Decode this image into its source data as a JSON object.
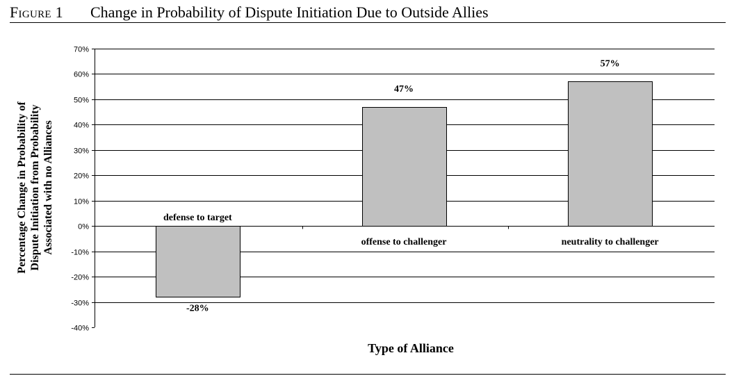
{
  "figure": {
    "label": "Figure 1",
    "title": "Change in Probability of Dispute Initiation Due to Outside Allies"
  },
  "chart_data": {
    "type": "bar",
    "categories": [
      "defense to target",
      "offense to challenger",
      "neutrality to challenger"
    ],
    "values": [
      -28,
      47,
      57
    ],
    "data_labels": [
      "-28%",
      "47%",
      "57%"
    ],
    "xlabel": "Type of Alliance",
    "ylabel_lines": [
      "Percentage Change in Probability of",
      "Dispute Initiation from Probability",
      "Associated with no Alliances"
    ],
    "ylim": [
      -40,
      70
    ],
    "yticks": [
      -40,
      -30,
      -20,
      -10,
      0,
      10,
      20,
      30,
      40,
      50,
      60,
      70
    ],
    "ytick_labels": [
      "-40%",
      "-30%",
      "-20%",
      "-10%",
      "0%",
      "10%",
      "20%",
      "30%",
      "40%",
      "50%",
      "60%",
      "70%"
    ],
    "grid": true,
    "bar_color": "#c0c0c0"
  }
}
